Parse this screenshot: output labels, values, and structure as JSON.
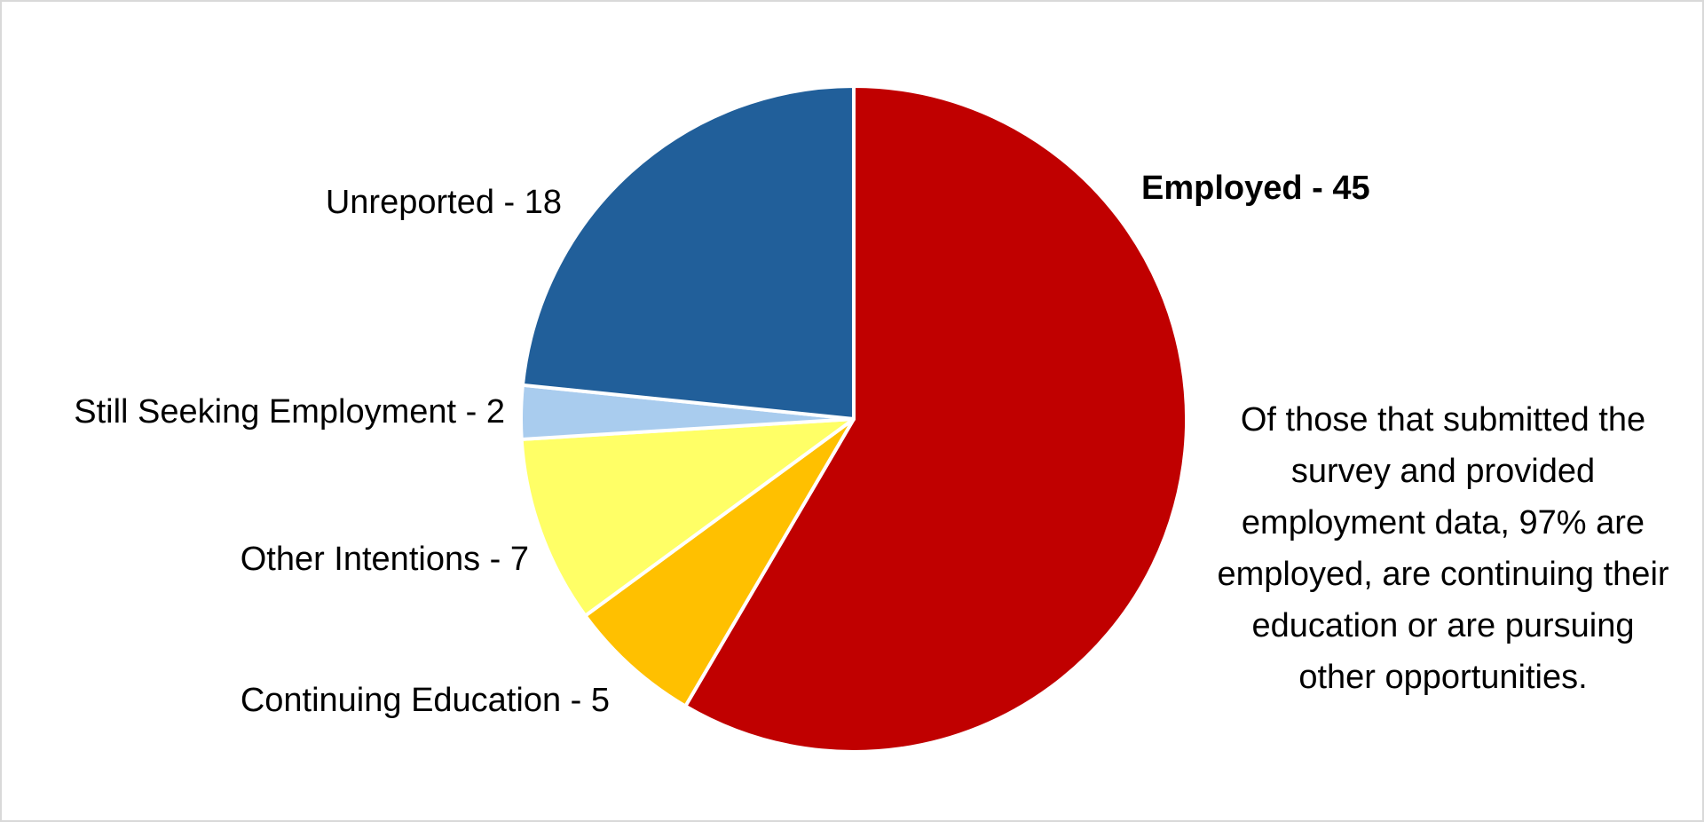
{
  "chart_data": {
    "type": "pie",
    "title": "",
    "slices": [
      {
        "label": "Employed - 45",
        "category": "Employed",
        "value": 45,
        "color": "#C00000",
        "bold": true
      },
      {
        "label": "Continuing Education - 5",
        "category": "Continuing Education",
        "value": 5,
        "color": "#FFC000",
        "bold": false
      },
      {
        "label": "Other Intentions - 7",
        "category": "Other Intentions",
        "value": 7,
        "color": "#FFFF66",
        "bold": false
      },
      {
        "label": "Still Seeking Employment - 2",
        "category": "Still Seeking Employment",
        "value": 2,
        "color": "#A9CCEE",
        "bold": false
      },
      {
        "label": "Unreported - 18",
        "category": "Unreported",
        "value": 18,
        "color": "#215F9A",
        "bold": false
      }
    ],
    "annotation": "Of those that submitted the survey and provided employment data, 97% are employed, are continuing their education or are pursuing other opportunities.",
    "legend": "none"
  }
}
